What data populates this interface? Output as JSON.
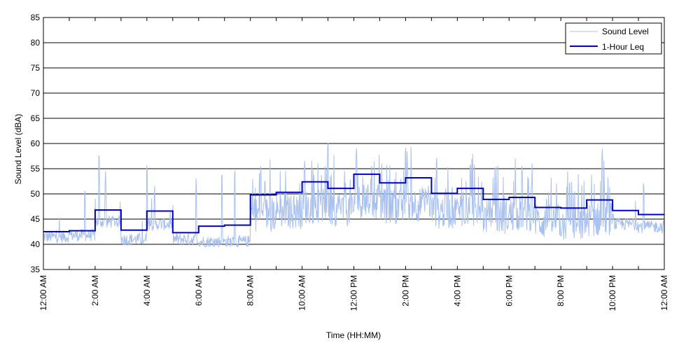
{
  "chart_data": {
    "type": "line",
    "title": "",
    "xlabel": "Time (HH:MM)",
    "ylabel": "Sound Level (dBA)",
    "ylim": [
      35,
      85
    ],
    "y_ticks": [
      35,
      40,
      45,
      50,
      55,
      60,
      65,
      70,
      75,
      80,
      85
    ],
    "xlim_hours": [
      0,
      24
    ],
    "x_tick_labels": [
      "12:00 AM",
      "2:00 AM",
      "4:00 AM",
      "6:00 AM",
      "8:00 AM",
      "10:00 AM",
      "12:00 PM",
      "2:00 PM",
      "4:00 PM",
      "6:00 PM",
      "8:00 PM",
      "10:00 PM",
      "12:00 AM"
    ],
    "x_tick_hours": [
      0,
      2,
      4,
      6,
      8,
      10,
      12,
      14,
      16,
      18,
      20,
      22,
      24
    ],
    "grid": "horizontal",
    "legend_position": "top-right",
    "series": [
      {
        "name": "Sound Level",
        "color": "#a8c0f0",
        "style": "thin-noisy",
        "hourly_baseline": [
          41.5,
          41.8,
          44.5,
          41.0,
          44.0,
          41.0,
          40.5,
          40.5,
          46.0,
          46.5,
          47.5,
          47.0,
          48.5,
          47.5,
          48.0,
          46.5,
          47.0,
          45.5,
          46.0,
          44.5,
          44.0,
          45.0,
          44.0,
          43.5
        ],
        "peaks": [
          {
            "hour": 1.6,
            "value": 51.5
          },
          {
            "hour": 2.15,
            "value": 58.7
          },
          {
            "hour": 2.4,
            "value": 54.5
          },
          {
            "hour": 4.0,
            "value": 56.5
          },
          {
            "hour": 4.3,
            "value": 52.0
          },
          {
            "hour": 5.9,
            "value": 53.5
          },
          {
            "hour": 6.9,
            "value": 55.0
          },
          {
            "hour": 7.4,
            "value": 55.5
          },
          {
            "hour": 8.4,
            "value": 55.5
          },
          {
            "hour": 10.1,
            "value": 57.0
          },
          {
            "hour": 11.0,
            "value": 61.0
          },
          {
            "hour": 12.1,
            "value": 59.5
          },
          {
            "hour": 14.0,
            "value": 60.0
          },
          {
            "hour": 15.2,
            "value": 58.0
          },
          {
            "hour": 16.5,
            "value": 57.0
          },
          {
            "hour": 18.5,
            "value": 56.0
          },
          {
            "hour": 21.6,
            "value": 59.0
          },
          {
            "hour": 23.2,
            "value": 53.0
          }
        ]
      },
      {
        "name": "1-Hour Leq",
        "color": "#0000cc",
        "style": "step",
        "hours": [
          0,
          1,
          2,
          3,
          4,
          5,
          6,
          7,
          8,
          9,
          10,
          11,
          12,
          13,
          14,
          15,
          16,
          17,
          18,
          19,
          20,
          21,
          22,
          23
        ],
        "values": [
          42.5,
          42.7,
          46.8,
          42.8,
          46.6,
          42.3,
          43.6,
          43.8,
          49.8,
          50.3,
          52.4,
          51.1,
          53.9,
          52.2,
          53.2,
          50.1,
          51.1,
          48.9,
          49.3,
          47.3,
          47.2,
          48.8,
          46.7,
          45.9
        ]
      }
    ]
  }
}
